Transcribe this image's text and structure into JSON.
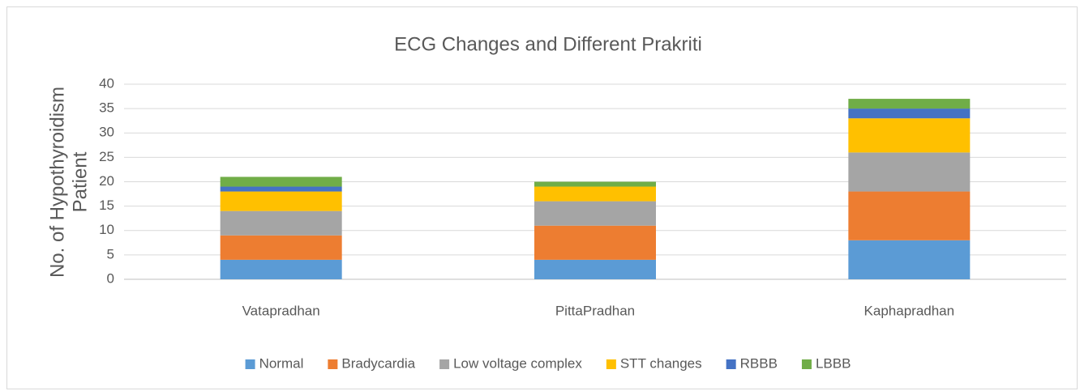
{
  "chart_data": {
    "type": "stacked_bar",
    "title": "ECG Changes and Different Prakriti",
    "y_label": [
      "No. of Hypothyroidism",
      "Patient"
    ],
    "categories": [
      "Vatapradhan",
      "PittaPradhan",
      "Kaphapradhan"
    ],
    "series": [
      {
        "name": "Normal",
        "color": "#5b9bd5",
        "values": [
          4,
          4,
          8
        ]
      },
      {
        "name": "Bradycardia",
        "color": "#ed7d31",
        "values": [
          5,
          7,
          10
        ]
      },
      {
        "name": "Low voltage complex",
        "color": "#a5a5a5",
        "values": [
          5,
          5,
          8
        ]
      },
      {
        "name": "STT changes",
        "color": "#ffc000",
        "values": [
          4,
          3,
          7
        ]
      },
      {
        "name": "RBBB",
        "color": "#4472c4",
        "values": [
          1,
          0,
          2
        ]
      },
      {
        "name": "LBBB",
        "color": "#70ad47",
        "values": [
          2,
          1,
          2
        ]
      }
    ],
    "ylim": [
      0,
      40
    ],
    "yticks": [
      0,
      5,
      10,
      15,
      20,
      25,
      30,
      35,
      40
    ],
    "grid": true,
    "legend": "bottom"
  }
}
